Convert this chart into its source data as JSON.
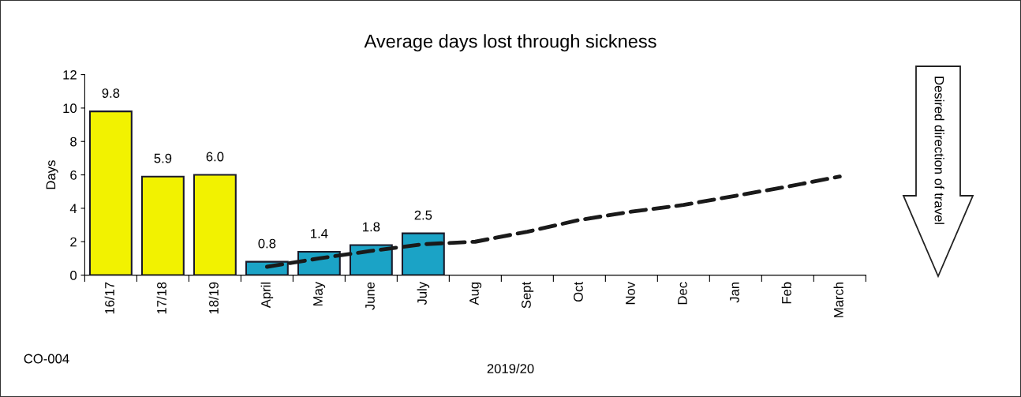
{
  "chart_data": {
    "type": "bar",
    "title": "Average days lost through sickness",
    "xlabel": "2019/20",
    "ylabel": "Days",
    "categories": [
      "16/17",
      "17/18",
      "18/19",
      "April",
      "May",
      "June",
      "July",
      "Aug",
      "Sept",
      "Oct",
      "Nov",
      "Dec",
      "Jan",
      "Feb",
      "March"
    ],
    "series": [
      {
        "colors": [
          "#f2f200",
          "#f2f200",
          "#f2f200",
          "#1ba3c6",
          "#1ba3c6",
          "#1ba3c6",
          "#1ba3c6",
          null,
          null,
          null,
          null,
          null,
          null,
          null,
          null
        ],
        "values": [
          9.8,
          5.9,
          6.0,
          0.8,
          1.4,
          1.8,
          2.5,
          null,
          null,
          null,
          null,
          null,
          null,
          null,
          null
        ],
        "value_labels": [
          "9.8",
          "5.9",
          "6.0",
          "0.8",
          "1.4",
          "1.8",
          "2.5",
          null,
          null,
          null,
          null,
          null,
          null,
          null,
          null
        ]
      },
      {
        "type": "line",
        "color": "#1a1a1a",
        "line_style": "dashed",
        "values": [
          null,
          null,
          null,
          0.5,
          1.0,
          1.45,
          1.85,
          2.0,
          2.6,
          3.3,
          3.8,
          4.2,
          4.75,
          5.3,
          5.9
        ]
      }
    ],
    "ylim": [
      0,
      12
    ],
    "yticks": [
      0,
      2,
      4,
      6,
      8,
      10,
      12
    ],
    "grid": false,
    "legend": false,
    "annotations": [
      "CO-004",
      "Desired direction of travel"
    ]
  }
}
